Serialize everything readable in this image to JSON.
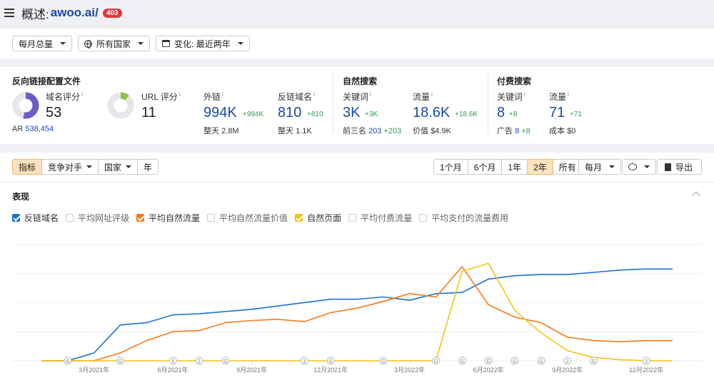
{
  "header": {
    "title_prefix": "概述:",
    "domain": "awoo.ai/",
    "badge": "403"
  },
  "filters": {
    "period": "每月总量",
    "country": "所有国家",
    "change": "变化: 最近两年"
  },
  "backlinks": {
    "title": "反向链接配置文件",
    "domain_rating": {
      "label": "域名评分",
      "value": "53"
    },
    "ar": {
      "label": "AR",
      "value": "538,454"
    },
    "url_rating": {
      "label": "URL 评分",
      "value": "11"
    },
    "outlinks": {
      "label": "外链",
      "value": "994K",
      "delta": "+994K",
      "sub_label": "整天",
      "sub_value": "2.8M"
    },
    "ref_domains": {
      "label": "反链域名",
      "value": "810",
      "delta": "+810",
      "sub_label": "整天",
      "sub_value": "1.1K"
    }
  },
  "organic": {
    "title": "自然搜索",
    "keywords": {
      "label": "关键词",
      "value": "3K",
      "delta": "+3K",
      "sub_label": "前三名",
      "sub_value": "203",
      "sub_delta": "+203"
    },
    "traffic": {
      "label": "流量",
      "value": "18.6K",
      "delta": "+18.6K",
      "sub_label": "价值",
      "sub_value": "$4.9K"
    }
  },
  "paid": {
    "title": "付费搜索",
    "keywords": {
      "label": "关键词",
      "value": "8",
      "delta": "+8",
      "sub_label": "广告",
      "sub_value": "8",
      "sub_delta": "+8"
    },
    "traffic": {
      "label": "流量",
      "value": "71",
      "delta": "+71",
      "sub_label": "成本",
      "sub_value": "$0"
    }
  },
  "toolbar": {
    "tabs": [
      "指标",
      "竞争对手",
      "国家",
      "年"
    ],
    "ranges": [
      "1个月",
      "6个月",
      "1年",
      "2年",
      "所有"
    ],
    "active_range": "2年",
    "interval": "每月",
    "export": "导出"
  },
  "performance": {
    "title": "表现",
    "legend": [
      {
        "label": "反链域名",
        "checked": true,
        "color": "#1a73d4"
      },
      {
        "label": "平均网址评级",
        "checked": false
      },
      {
        "label": "平均自然流量",
        "checked": true,
        "color": "#f57a1c"
      },
      {
        "label": "平均自然流量价值",
        "checked": false
      },
      {
        "label": "自然页面",
        "checked": true,
        "color": "#f5c40f"
      },
      {
        "label": "平均付费流量",
        "checked": false
      },
      {
        "label": "平均支付的流量费用",
        "checked": false
      }
    ]
  },
  "chart_data": {
    "type": "line",
    "x": [
      "2021-01",
      "2021-02",
      "2021-03",
      "2021-04",
      "2021-05",
      "2021-06",
      "2021-07",
      "2021-08",
      "2021-09",
      "2021-10",
      "2021-11",
      "2021-12",
      "2022-01",
      "2022-02",
      "2022-03",
      "2022-04",
      "2022-05",
      "2022-06",
      "2022-07",
      "2022-08",
      "2022-09",
      "2022-10",
      "2022-11",
      "2022-12",
      "2023-01"
    ],
    "x_tick_labels": [
      "3月2021年",
      "6月2021年",
      "9月2021年",
      "12月2021年",
      "3月2022年",
      "6月2022年",
      "9月2022年",
      "12月2022年"
    ],
    "x_tick_positions": [
      "2021-03",
      "2021-06",
      "2021-09",
      "2021-12",
      "2022-03",
      "2022-06",
      "2022-09",
      "2022-12"
    ],
    "ylim": [
      0,
      100
    ],
    "grid": true,
    "series": [
      {
        "name": "反链域名",
        "color": "#1a73d4",
        "values": [
          0,
          0,
          7,
          32,
          34,
          41,
          42,
          44,
          46,
          49,
          52,
          55,
          55,
          57,
          54,
          60,
          61,
          73,
          76,
          77,
          77,
          79,
          81,
          82,
          82
        ]
      },
      {
        "name": "平均自然流量",
        "color": "#f57a1c",
        "values": [
          0,
          0,
          0,
          7,
          18,
          26,
          27,
          34,
          36,
          37,
          35,
          43,
          47,
          53,
          60,
          57,
          84,
          50,
          39,
          34,
          21,
          18,
          17,
          18,
          18
        ]
      },
      {
        "name": "自然页面",
        "color": "#f5c40f",
        "values": [
          0,
          0,
          0,
          0,
          0,
          0,
          0,
          0,
          0,
          0,
          0,
          0,
          0,
          0,
          0,
          0,
          80,
          87,
          45,
          25,
          9,
          3,
          1,
          0,
          0
        ]
      }
    ],
    "annotations": [
      {
        "x": "2021-02",
        "label": "G"
      },
      {
        "x": "2021-04",
        "label": "G"
      },
      {
        "x": "2021-06",
        "label": "5"
      },
      {
        "x": "2021-07",
        "label": "2"
      },
      {
        "x": "2021-08",
        "label": "G"
      },
      {
        "x": "2021-11",
        "label": "3"
      },
      {
        "x": "2021-12",
        "label": "G"
      },
      {
        "x": "2022-02",
        "label": "G"
      },
      {
        "x": "2022-04",
        "label": "G"
      },
      {
        "x": "2022-05",
        "label": "G"
      },
      {
        "x": "2022-06",
        "label": "G"
      },
      {
        "x": "2022-07",
        "label": "G"
      },
      {
        "x": "2022-08",
        "label": "G"
      },
      {
        "x": "2022-09",
        "label": "2"
      },
      {
        "x": "2022-10",
        "label": "G"
      },
      {
        "x": "2022-12",
        "label": "2"
      }
    ]
  }
}
